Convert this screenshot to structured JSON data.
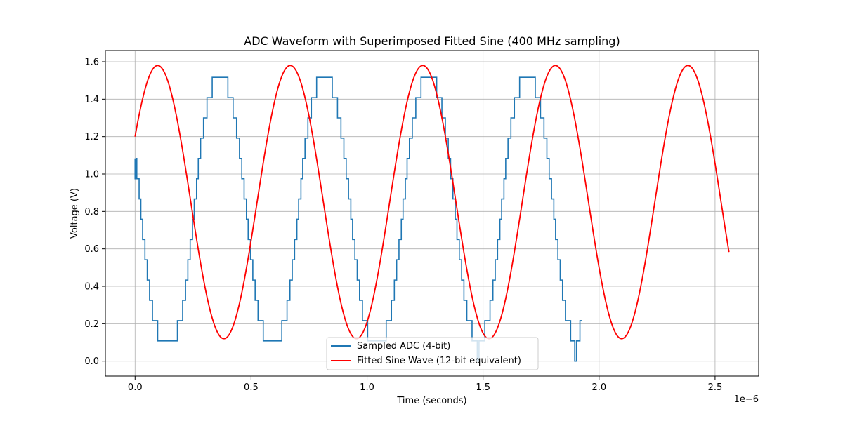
{
  "chart_data": {
    "type": "line",
    "title": "ADC Waveform with Superimposed Fitted Sine (400 MHz sampling)",
    "xlabel": "Time (seconds)",
    "ylabel": "Voltage (V)",
    "x_offset_label": "1e−6",
    "x_ticks": [
      "0.0",
      "0.5",
      "1.0",
      "1.5",
      "2.0",
      "2.5"
    ],
    "y_ticks": [
      "0.0",
      "0.2",
      "0.4",
      "0.6",
      "0.8",
      "1.0",
      "1.2",
      "1.4",
      "1.6"
    ],
    "xlim": [
      -1.28e-07,
      2.688e-06
    ],
    "ylim": [
      -0.08,
      1.66
    ],
    "grid": true,
    "legend_position": "bottom-center",
    "series": [
      {
        "name": "Sampled ADC (4-bit)",
        "color": "#1f77b4",
        "style": "step",
        "x_start": 0,
        "x_step": 2.5e-09,
        "values": [
          1.0833,
          0.975,
          0.975,
          1.0833,
          0.975,
          0.975,
          0.975,
          0.975,
          0.8667,
          0.8667,
          0.8667,
          0.7583,
          0.7583,
          0.7583,
          0.65,
          0.65,
          0.65,
          0.65,
          0.5417,
          0.5417,
          0.5417,
          0.5417,
          0.4333,
          0.4333,
          0.4333,
          0.4333,
          0.325,
          0.325,
          0.325,
          0.325,
          0.325,
          0.2167,
          0.2167,
          0.2167,
          0.2167,
          0.2167,
          0.2167,
          0.2167,
          0.2167,
          0.2167,
          0.1083,
          0.1083,
          0.1083,
          0.1083,
          0.1083,
          0.1083,
          0.1083,
          0.1083,
          0.1083,
          0.1083,
          0.1083,
          0.1083,
          0.1083,
          0.1083,
          0.1083,
          0.1083,
          0.1083,
          0.1083,
          0.1083,
          0.1083,
          0.1083,
          0.1083,
          0.1083,
          0.1083,
          0.1083,
          0.1083,
          0.1083,
          0.1083,
          0.1083,
          0.1083,
          0.1083,
          0.1083,
          0.1083,
          0.1083,
          0.2167,
          0.2167,
          0.2167,
          0.2167,
          0.2167,
          0.2167,
          0.2167,
          0.2167,
          0.2167,
          0.325,
          0.325,
          0.325,
          0.325,
          0.325,
          0.4333,
          0.4333,
          0.4333,
          0.4333,
          0.5417,
          0.5417,
          0.5417,
          0.5417,
          0.65,
          0.65,
          0.65,
          0.65,
          0.7583,
          0.7583,
          0.7583,
          0.8667,
          0.8667,
          0.8667,
          0.8667,
          0.975,
          0.975,
          0.975,
          1.0833,
          1.0833,
          1.0833,
          1.0833,
          1.1917,
          1.1917,
          1.1917,
          1.1917,
          1.1917,
          1.3,
          1.3,
          1.3,
          1.3,
          1.3,
          1.3,
          1.4083,
          1.4083,
          1.4083,
          1.4083,
          1.4083,
          1.4083,
          1.4083,
          1.4083,
          1.4083,
          1.5167,
          1.5167,
          1.5167,
          1.5167,
          1.5167,
          1.5167,
          1.5167,
          1.5167,
          1.5167,
          1.5167,
          1.5167,
          1.5167,
          1.5167,
          1.5167,
          1.5167,
          1.5167,
          1.5167,
          1.5167,
          1.5167,
          1.5167,
          1.5167,
          1.5167,
          1.5167,
          1.5167,
          1.5167,
          1.5167,
          1.5167,
          1.4083,
          1.4083,
          1.4083,
          1.4083,
          1.4083,
          1.4083,
          1.4083,
          1.4083,
          1.4083,
          1.3,
          1.3,
          1.3,
          1.3,
          1.3,
          1.3,
          1.1917,
          1.1917,
          1.1917,
          1.1917,
          1.1917,
          1.0833,
          1.0833,
          1.0833,
          1.0833,
          0.975,
          0.975,
          0.975,
          0.975,
          0.8667,
          0.8667,
          0.8667,
          0.8667,
          0.7583,
          0.7583,
          0.7583,
          0.65,
          0.65,
          0.65,
          0.65,
          0.5417,
          0.5417,
          0.5417,
          0.5417,
          0.4333,
          0.4333,
          0.4333,
          0.4333,
          0.325,
          0.325,
          0.325,
          0.325,
          0.325,
          0.2167,
          0.2167,
          0.2167,
          0.2167,
          0.2167,
          0.2167,
          0.2167,
          0.2167,
          0.2167,
          0.1083,
          0.1083,
          0.1083,
          0.1083,
          0.1083,
          0.1083,
          0.1083,
          0.1083,
          0.1083,
          0.1083,
          0.1083,
          0.1083,
          0.1083,
          0.1083,
          0.1083,
          0.1083,
          0.1083,
          0.1083,
          0.1083,
          0.1083,
          0.1083,
          0.1083,
          0.1083,
          0.1083,
          0.1083,
          0.1083,
          0.1083,
          0.1083,
          0.1083,
          0.1083,
          0.1083,
          0.1083,
          0.2167,
          0.2167,
          0.2167,
          0.2167,
          0.2167,
          0.2167,
          0.2167,
          0.2167,
          0.2167,
          0.325,
          0.325,
          0.325,
          0.325,
          0.325,
          0.4333,
          0.4333,
          0.4333,
          0.4333,
          0.5417,
          0.5417,
          0.5417,
          0.5417,
          0.65,
          0.65,
          0.65,
          0.65,
          0.7583,
          0.7583,
          0.7583,
          0.8667,
          0.8667,
          0.8667,
          0.8667,
          0.975,
          0.975,
          0.975,
          1.0833,
          1.0833,
          1.0833,
          1.0833,
          1.1917,
          1.1917,
          1.1917,
          1.1917,
          1.1917,
          1.3,
          1.3,
          1.3,
          1.3,
          1.3,
          1.3,
          1.4083,
          1.4083,
          1.4083,
          1.4083,
          1.4083,
          1.4083,
          1.4083,
          1.4083,
          1.4083,
          1.5167,
          1.5167,
          1.5167,
          1.5167,
          1.5167,
          1.5167,
          1.5167,
          1.5167,
          1.5167,
          1.5167,
          1.5167,
          1.5167,
          1.5167,
          1.5167,
          1.5167,
          1.5167,
          1.5167,
          1.5167,
          1.5167,
          1.5167,
          1.5167,
          1.5167,
          1.5167,
          1.5167,
          1.5167,
          1.5167,
          1.5167,
          1.4083,
          1.4083,
          1.4083,
          1.4083,
          1.4083,
          1.4083,
          1.4083,
          1.4083,
          1.4083,
          1.3,
          1.3,
          1.3,
          1.3,
          1.3,
          1.3,
          1.1917,
          1.1917,
          1.1917,
          1.1917,
          1.1917,
          1.0833,
          1.0833,
          1.0833,
          1.0833,
          0.975,
          0.975,
          0.975,
          0.975,
          0.8667,
          0.8667,
          0.8667,
          0.8667,
          0.7583,
          0.7583,
          0.7583,
          0.65,
          0.65,
          0.65,
          0.65,
          0.5417,
          0.5417,
          0.5417,
          0.5417,
          0.4333,
          0.4333,
          0.4333,
          0.4333,
          0.325,
          0.325,
          0.325,
          0.325,
          0.325,
          0.2167,
          0.2167,
          0.2167,
          0.2167,
          0.2167,
          0.2167,
          0.2167,
          0.2167,
          0.2167,
          0.1083,
          0.1083,
          0.1083,
          0.1083,
          0.1083,
          0.1083,
          0.1083,
          0.1083,
          0.1083,
          0.1083,
          0.1083,
          0.1083,
          0.1083,
          0.1083,
          0.1083,
          0.1083,
          0.1083,
          0.1083,
          0.1083,
          0.1083,
          0.1083,
          0.1083,
          0.1083,
          0.1083,
          0.1083,
          0.1083,
          0.1083,
          0.1083,
          0.1083,
          0.1083,
          0.1083,
          0.1083,
          0.2167,
          0.2167,
          0.2167,
          0.2167,
          0.2167,
          0.2167,
          0.2167,
          0.2167,
          0.2167,
          0.325,
          0.325,
          0.325,
          0.325,
          0.325,
          0.4333,
          0.4333,
          0.4333,
          0.4333,
          0.5417,
          0.5417,
          0.5417,
          0.5417,
          0.65,
          0.65,
          0.65,
          0.65,
          0.7583,
          0.7583,
          0.7583,
          0.8667,
          0.8667,
          0.8667,
          0.8667,
          0.975,
          0.975,
          0.975,
          1.0833,
          1.0833,
          1.0833,
          1.0833,
          1.1917,
          1.1917,
          1.1917,
          1.1917,
          1.1917,
          1.3,
          1.3,
          1.3,
          1.3,
          1.3,
          1.3,
          1.4083,
          1.4083,
          1.4083,
          1.4083,
          1.4083,
          1.4083,
          1.4083,
          1.4083,
          1.4083,
          1.5167,
          1.5167,
          1.5167,
          1.5167,
          1.5167,
          1.5167,
          1.5167,
          1.5167,
          1.5167,
          1.5167,
          1.5167,
          1.5167,
          1.5167,
          1.5167,
          1.5167,
          1.5167,
          1.5167,
          1.5167,
          1.5167,
          1.5167,
          1.5167,
          1.5167,
          1.5167,
          1.5167,
          1.5167,
          1.5167,
          1.5167,
          1.4083,
          1.4083,
          1.4083,
          1.4083,
          1.4083,
          1.4083,
          1.4083,
          1.4083,
          1.4083,
          1.3,
          1.3,
          1.3,
          1.3,
          1.3,
          1.3,
          1.1917,
          1.1917,
          1.1917,
          1.1917,
          1.1917,
          1.0833,
          1.0833,
          1.0833,
          1.0833,
          0.975,
          0.975,
          0.975,
          0.975,
          0.8667,
          0.8667,
          0.8667,
          0.8667,
          0.7583,
          0.7583,
          0.7583,
          0.65,
          0.65,
          0.65,
          0.65,
          0.5417,
          0.5417,
          0.5417,
          0.5417,
          0.4333,
          0.4333,
          0.4333,
          0.4333,
          0.325,
          0.325,
          0.325,
          0.325,
          0.325,
          0.2167,
          0.2167,
          0.2167,
          0.2167,
          0.2167,
          0.2167,
          0.2167,
          0.2167,
          0.2167,
          0.1083,
          0.1083,
          0.1083,
          0.1083,
          0.1083,
          0.1083,
          0.1083,
          0.1083,
          0.1083,
          0.0,
          0.0,
          0.0,
          0.1083,
          0.1083,
          0.1083,
          0.1083,
          0.1083,
          0.1083,
          0.1083,
          0.1083,
          0.1083,
          0.1083,
          0.2167,
          0.2167,
          0.2167,
          0.2167,
          0.2167,
          0.2167,
          0.2167,
          0.2167,
          0.2167,
          0.325,
          0.325,
          0.325,
          0.325,
          0.325,
          0.4333,
          0.4333,
          0.4333,
          0.4333,
          0.5417,
          0.5417,
          0.5417,
          0.5417,
          0.65,
          0.65,
          0.65,
          0.65,
          0.7583,
          0.7583,
          0.7583,
          0.8667,
          0.8667,
          0.8667,
          0.8667,
          0.975,
          0.975,
          0.975,
          1.0833,
          1.0833,
          1.0833,
          1.0833,
          1.1917,
          1.1917,
          1.1917,
          1.1917,
          1.1917,
          1.3,
          1.3,
          1.3,
          1.3,
          1.3,
          1.3,
          1.4083,
          1.4083,
          1.4083,
          1.4083,
          1.4083,
          1.4083,
          1.4083,
          1.4083,
          1.4083,
          1.5167,
          1.5167,
          1.5167,
          1.5167,
          1.5167,
          1.5167,
          1.5167,
          1.5167,
          1.5167,
          1.5167,
          1.5167,
          1.5167,
          1.5167,
          1.5167,
          1.5167,
          1.5167,
          1.5167,
          1.5167,
          1.5167,
          1.5167,
          1.5167,
          1.5167,
          1.5167,
          1.5167,
          1.5167,
          1.5167,
          1.5167,
          1.4083,
          1.4083,
          1.4083,
          1.4083,
          1.4083,
          1.4083,
          1.4083,
          1.4083,
          1.4083,
          1.3,
          1.3,
          1.3,
          1.3,
          1.3,
          1.3,
          1.1917,
          1.1917,
          1.1917,
          1.1917,
          1.1917,
          1.0833,
          1.0833,
          1.0833,
          1.0833,
          0.975,
          0.975,
          0.975,
          0.975,
          0.8667,
          0.8667,
          0.8667,
          0.8667,
          0.7583,
          0.7583,
          0.7583,
          0.65,
          0.65,
          0.65,
          0.65,
          0.5417,
          0.5417,
          0.5417,
          0.5417,
          0.4333,
          0.4333,
          0.4333,
          0.4333,
          0.325,
          0.325,
          0.325,
          0.325,
          0.325,
          0.2167,
          0.2167,
          0.2167,
          0.2167,
          0.2167,
          0.2167,
          0.2167,
          0.2167,
          0.2167,
          0.1083,
          0.1083,
          0.1083,
          0.1083,
          0.1083,
          0.1083,
          0.1083,
          0.0,
          0.0,
          0.0,
          0.1083,
          0.1083,
          0.1083,
          0.1083,
          0.1083,
          0.1083,
          0.2167,
          0.2167,
          0.2167
        ]
      },
      {
        "name": "Fitted Sine Wave (12-bit equivalent)",
        "color": "#ff0000",
        "style": "line",
        "function": "sine",
        "offset": 0.85,
        "amplitude": 0.73,
        "frequency_hz": 1750000,
        "phase_rad": 0.5,
        "x_range": [
          0,
          2.56e-06
        ]
      }
    ]
  }
}
